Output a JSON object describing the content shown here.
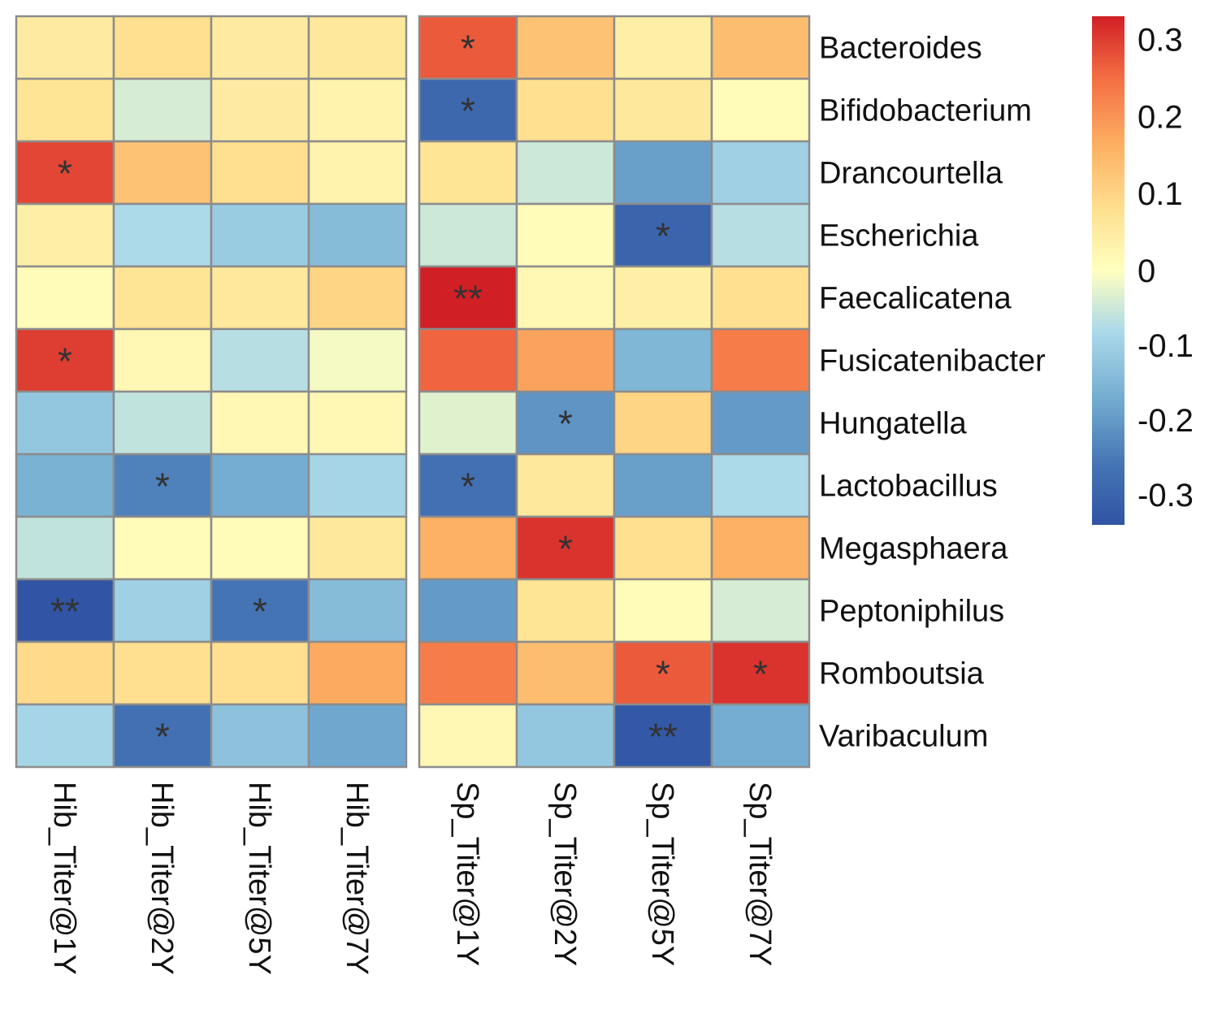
{
  "chart_data": {
    "type": "heatmap",
    "rows": [
      "Bacteroides",
      "Bifidobacterium",
      "Drancourtella",
      "Escherichia",
      "Faecalicatena",
      "Fusicatenibacter",
      "Hungatella",
      "Lactobacillus",
      "Megasphaera",
      "Peptoniphilus",
      "Romboutsia",
      "Varibaculum"
    ],
    "column_groups": [
      {
        "columns": [
          "Hib_Titer@1Y",
          "Hib_Titer@2Y",
          "Hib_Titer@5Y",
          "Hib_Titer@7Y"
        ]
      },
      {
        "columns": [
          "Sp_Titer@1Y",
          "Sp_Titer@2Y",
          "Sp_Titer@5Y",
          "Sp_Titer@7Y"
        ]
      }
    ],
    "values": [
      [
        0.05,
        0.08,
        0.05,
        0.06,
        0.27,
        0.13,
        0.04,
        0.14
      ],
      [
        0.07,
        -0.04,
        0.05,
        0.03,
        -0.29,
        0.08,
        0.06,
        0.01
      ],
      [
        0.29,
        0.13,
        0.08,
        0.03,
        0.07,
        -0.05,
        -0.19,
        -0.1
      ],
      [
        0.04,
        -0.08,
        -0.11,
        -0.14,
        -0.05,
        0.01,
        -0.3,
        -0.07
      ],
      [
        0.01,
        0.07,
        0.06,
        0.1,
        0.33,
        0.02,
        0.04,
        0.08
      ],
      [
        0.3,
        0.02,
        -0.07,
        -0.01,
        0.26,
        0.18,
        -0.15,
        0.23
      ],
      [
        -0.12,
        -0.06,
        0.02,
        0.02,
        -0.03,
        -0.21,
        0.1,
        -0.2
      ],
      [
        -0.16,
        -0.24,
        -0.17,
        -0.09,
        -0.27,
        0.06,
        -0.19,
        -0.08
      ],
      [
        -0.06,
        0.01,
        0.01,
        0.06,
        0.16,
        0.31,
        0.08,
        0.16
      ],
      [
        -0.34,
        -0.1,
        -0.26,
        -0.14,
        -0.2,
        0.07,
        0.01,
        -0.04
      ],
      [
        0.09,
        0.08,
        0.08,
        0.17,
        0.23,
        0.14,
        0.27,
        0.31
      ],
      [
        -0.09,
        -0.27,
        -0.13,
        -0.18,
        0.02,
        -0.12,
        -0.33,
        -0.17
      ]
    ],
    "significance": [
      [
        "",
        "",
        "",
        "",
        "*",
        "",
        "",
        ""
      ],
      [
        "",
        "",
        "",
        "",
        "*",
        "",
        "",
        ""
      ],
      [
        "*",
        "",
        "",
        "",
        "",
        "",
        "",
        ""
      ],
      [
        "",
        "",
        "",
        "",
        "",
        "",
        "*",
        ""
      ],
      [
        "",
        "",
        "",
        "",
        "**",
        "",
        "",
        ""
      ],
      [
        "*",
        "",
        "",
        "",
        "",
        "",
        "",
        ""
      ],
      [
        "",
        "",
        "",
        "",
        "",
        "*",
        "",
        ""
      ],
      [
        "",
        "*",
        "",
        "",
        "*",
        "",
        "",
        ""
      ],
      [
        "",
        "",
        "",
        "",
        "",
        "*",
        "",
        ""
      ],
      [
        "**",
        "",
        "*",
        "",
        "",
        "",
        "",
        ""
      ],
      [
        "",
        "",
        "",
        "",
        "",
        "",
        "*",
        "*"
      ],
      [
        "",
        "*",
        "",
        "",
        "",
        "",
        "**",
        ""
      ]
    ],
    "color_scale": {
      "min": -0.34,
      "max": 0.33,
      "ticks": [
        0.3,
        0.2,
        0.1,
        0,
        -0.1,
        -0.2,
        -0.3
      ],
      "tick_labels": [
        "0.3",
        "0.2",
        "0.1",
        "0",
        "-0.1",
        "-0.2",
        "-0.3"
      ],
      "low_color": "#3a62a8",
      "mid_color": "#ffffbf",
      "high_color": "#d11f26"
    },
    "legend_position": "top-right",
    "border_color": "#8c8c8c"
  }
}
